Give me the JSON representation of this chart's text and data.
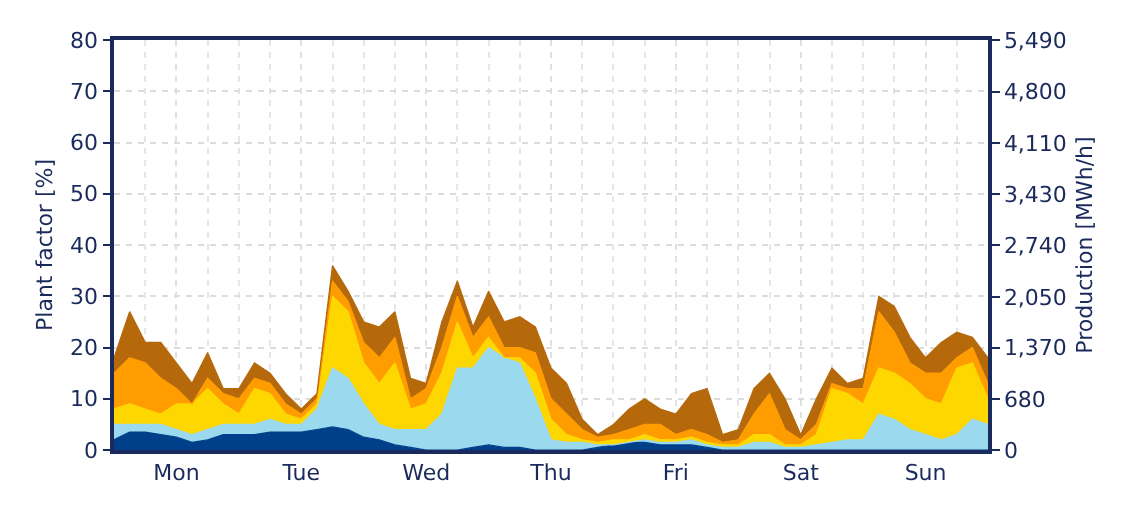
{
  "chart_data": {
    "type": "area",
    "stacked": true,
    "ylabel": "Plant factor [%]",
    "y2label": "Production [MWh/h]",
    "categories": [
      null,
      null,
      null,
      null,
      "Mon",
      null,
      null,
      null,
      null,
      null,
      null,
      null,
      "Tue",
      null,
      null,
      null,
      null,
      null,
      null,
      null,
      "Wed",
      null,
      null,
      null,
      null,
      null,
      null,
      null,
      "Thu",
      null,
      null,
      null,
      null,
      null,
      null,
      null,
      "Fri",
      null,
      null,
      null,
      null,
      null,
      null,
      null,
      "Sat",
      null,
      null,
      null,
      null,
      null,
      null,
      null,
      "Sun",
      null,
      null,
      null,
      null
    ],
    "series": [
      {
        "color": "#003f8a",
        "values": [
          2,
          3.5,
          3.5,
          3,
          2.5,
          1.5,
          2,
          3,
          3,
          3,
          3.5,
          3.5,
          3.5,
          4,
          4.5,
          4,
          2.5,
          2,
          1,
          0.5,
          0,
          0,
          0,
          0.5,
          1,
          0.5,
          0.5,
          0,
          0,
          0,
          0,
          0.5,
          1,
          1.5,
          1.5,
          1,
          1,
          1,
          0.5,
          0,
          0,
          0,
          0,
          0,
          0,
          0,
          0,
          0,
          0,
          0,
          0,
          0,
          0,
          0,
          0,
          0,
          0
        ]
      },
      {
        "color": "#9ad9ee",
        "values": [
          3,
          1.5,
          1.5,
          2,
          1.5,
          1.5,
          2,
          2,
          2,
          2,
          2.5,
          1.5,
          1.5,
          4,
          11.5,
          10,
          6.5,
          3,
          3,
          3.5,
          4,
          7,
          16,
          15.5,
          19,
          17.5,
          16.5,
          10,
          2,
          1.5,
          1.5,
          0.5,
          0,
          0,
          0.5,
          0.5,
          0.5,
          1,
          0.5,
          0.5,
          0.5,
          1.5,
          1.5,
          0.5,
          0.5,
          1,
          1.5,
          2,
          2,
          7,
          6,
          4,
          3,
          2,
          3,
          6,
          5
        ]
      },
      {
        "color": "#ffd700",
        "values": [
          3,
          4,
          3,
          2,
          5,
          6,
          8,
          4,
          2,
          7,
          5,
          2,
          1,
          1,
          14,
          13,
          8,
          8,
          13,
          4,
          5,
          8,
          9,
          2,
          2,
          0,
          1,
          5,
          4,
          1.5,
          0.5,
          0.5,
          1,
          0.5,
          1,
          0.5,
          0.5,
          0.5,
          0.5,
          0.5,
          0.5,
          1.5,
          1.5,
          0.5,
          0.5,
          2,
          10.5,
          9,
          7,
          9,
          9,
          9,
          7,
          7,
          13,
          11,
          5
        ]
      },
      {
        "color": "#ff9c00",
        "values": [
          7,
          9,
          9,
          7,
          3,
          0,
          2,
          2,
          3,
          2,
          2,
          2,
          1,
          1,
          3,
          2,
          4,
          5,
          5,
          2,
          3,
          5,
          5,
          4,
          4,
          2,
          2,
          4,
          4,
          4,
          2,
          1,
          1,
          2,
          2,
          3,
          1,
          1.5,
          1.5,
          0.5,
          1,
          4,
          8,
          3,
          1,
          2,
          1,
          1,
          3,
          11,
          8,
          4,
          5,
          6,
          2,
          3,
          3
        ]
      },
      {
        "color": "#b5690b",
        "values": [
          3,
          9,
          4,
          7,
          5,
          4,
          5,
          1,
          2,
          3,
          2,
          2,
          1,
          1,
          3,
          2,
          4,
          6,
          5,
          4,
          1,
          5,
          3,
          2,
          5,
          5,
          6,
          5,
          6,
          6,
          2,
          0.5,
          2,
          4,
          5,
          3,
          4,
          7,
          9,
          1.5,
          2,
          5,
          4,
          6,
          1,
          5,
          3,
          1,
          2,
          3,
          5,
          5,
          3,
          6,
          5,
          2,
          5
        ]
      }
    ],
    "ylim": [
      0,
      80
    ],
    "yticks": [
      0,
      10,
      20,
      30,
      40,
      50,
      60,
      70,
      80
    ],
    "y2lim": [
      0,
      5490
    ],
    "y2ticks": [
      {
        "value": 0,
        "label": "0"
      },
      {
        "value": 680,
        "label": "680"
      },
      {
        "value": 1370,
        "label": "1,370"
      },
      {
        "value": 2050,
        "label": "2,050"
      },
      {
        "value": 2740,
        "label": "2,740"
      },
      {
        "value": 3430,
        "label": "3,430"
      },
      {
        "value": 4110,
        "label": "4,110"
      },
      {
        "value": 4800,
        "label": "4,800"
      },
      {
        "value": 5490,
        "label": "5,490"
      }
    ],
    "grid": true
  }
}
